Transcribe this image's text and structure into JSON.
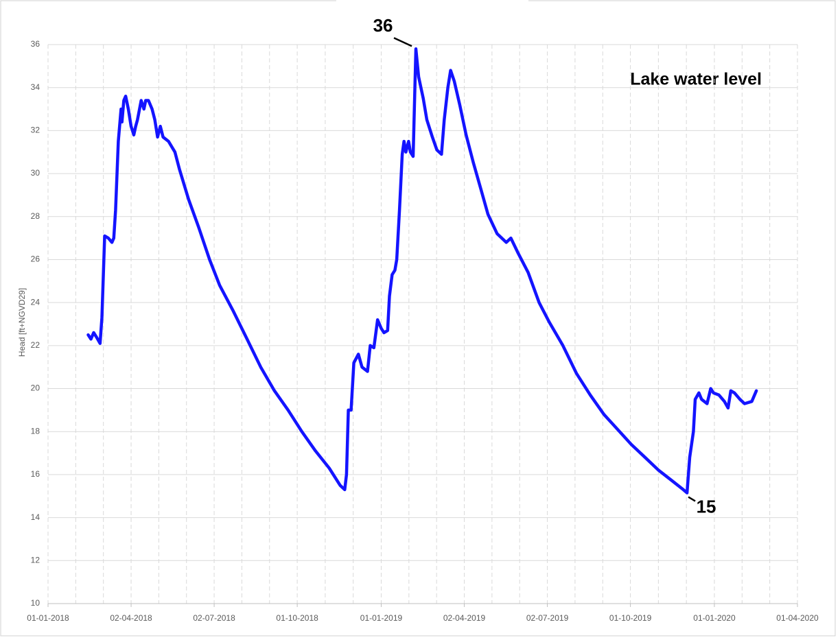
{
  "chart_data": {
    "type": "line",
    "title": "Lake water level",
    "y_label": "Head [ft+NGVD29]",
    "color": "#1414ff",
    "grid": true,
    "xlim": [
      "2018-01-01",
      "2020-04-01"
    ],
    "xticks": [
      {
        "value": "2018-01-01",
        "label": "01-01-2018"
      },
      {
        "value": "2018-04-02",
        "label": "02-04-2018"
      },
      {
        "value": "2018-07-02",
        "label": "02-07-2018"
      },
      {
        "value": "2018-10-01",
        "label": "01-10-2018"
      },
      {
        "value": "2019-01-01",
        "label": "01-01-2019"
      },
      {
        "value": "2019-04-02",
        "label": "02-04-2019"
      },
      {
        "value": "2019-07-02",
        "label": "02-07-2019"
      },
      {
        "value": "2019-10-01",
        "label": "01-10-2019"
      },
      {
        "value": "2020-01-01",
        "label": "01-01-2020"
      },
      {
        "value": "2020-04-01",
        "label": "01-04-2020"
      }
    ],
    "ylim": [
      10,
      36
    ],
    "yticks": [
      10,
      12,
      14,
      16,
      18,
      20,
      22,
      24,
      26,
      28,
      30,
      32,
      34,
      36
    ],
    "x": [
      "2018-02-14",
      "2018-02-17",
      "2018-02-20",
      "2018-02-23",
      "2018-02-27",
      "2018-03-01",
      "2018-03-04",
      "2018-03-08",
      "2018-03-12",
      "2018-03-14",
      "2018-03-16",
      "2018-03-19",
      "2018-03-22",
      "2018-03-23",
      "2018-03-25",
      "2018-03-27",
      "2018-03-30",
      "2018-04-02",
      "2018-04-05",
      "2018-04-07",
      "2018-04-09",
      "2018-04-13",
      "2018-04-16",
      "2018-04-18",
      "2018-04-21",
      "2018-04-25",
      "2018-04-28",
      "2018-05-01",
      "2018-05-04",
      "2018-05-07",
      "2018-05-13",
      "2018-05-20",
      "2018-05-25",
      "2018-06-04",
      "2018-06-15",
      "2018-06-27",
      "2018-07-08",
      "2018-07-23",
      "2018-08-07",
      "2018-08-22",
      "2018-09-06",
      "2018-09-21",
      "2018-10-06",
      "2018-10-21",
      "2018-11-05",
      "2018-11-17",
      "2018-11-22",
      "2018-11-24",
      "2018-11-26",
      "2018-11-29",
      "2018-12-02",
      "2018-12-07",
      "2018-12-11",
      "2018-12-17",
      "2018-12-20",
      "2018-12-24",
      "2018-12-28",
      "2019-01-01",
      "2019-01-04",
      "2019-01-08",
      "2019-01-10",
      "2019-01-13",
      "2019-01-16",
      "2019-01-18",
      "2019-01-21",
      "2019-01-24",
      "2019-01-26",
      "2019-01-28",
      "2019-01-31",
      "2019-02-02",
      "2019-02-05",
      "2019-02-08",
      "2019-02-11",
      "2019-02-16",
      "2019-02-20",
      "2019-02-26",
      "2019-03-03",
      "2019-03-08",
      "2019-03-11",
      "2019-03-15",
      "2019-03-18",
      "2019-03-22",
      "2019-03-28",
      "2019-04-04",
      "2019-04-12",
      "2019-04-20",
      "2019-04-28",
      "2019-05-08",
      "2019-05-18",
      "2019-05-23",
      "2019-05-31",
      "2019-06-11",
      "2019-06-23",
      "2019-07-04",
      "2019-07-19",
      "2019-08-03",
      "2019-08-18",
      "2019-09-02",
      "2019-09-17",
      "2019-10-02",
      "2019-10-17",
      "2019-11-01",
      "2019-11-16",
      "2019-11-28",
      "2019-12-02",
      "2019-12-05",
      "2019-12-09",
      "2019-12-11",
      "2019-12-15",
      "2019-12-18",
      "2019-12-24",
      "2019-12-28",
      "2019-12-31",
      "2020-01-06",
      "2020-01-12",
      "2020-01-16",
      "2020-01-19",
      "2020-01-23",
      "2020-01-29",
      "2020-02-03",
      "2020-02-11",
      "2020-02-16"
    ],
    "values": [
      22.5,
      22.3,
      22.6,
      22.4,
      22.1,
      23.3,
      27.1,
      27.0,
      26.8,
      27.0,
      28.3,
      31.5,
      33.0,
      32.4,
      33.4,
      33.6,
      33.0,
      32.2,
      31.8,
      32.2,
      32.5,
      33.4,
      33.0,
      33.4,
      33.4,
      33.0,
      32.5,
      31.7,
      32.2,
      31.7,
      31.5,
      31.0,
      30.2,
      28.8,
      27.5,
      26.0,
      24.8,
      23.6,
      22.3,
      21.0,
      19.9,
      19.0,
      18.0,
      17.1,
      16.3,
      15.5,
      15.3,
      16.0,
      19.0,
      19.0,
      21.2,
      21.6,
      21.0,
      20.8,
      22.0,
      21.9,
      23.2,
      22.8,
      22.6,
      22.7,
      24.3,
      25.3,
      25.5,
      26.0,
      28.3,
      30.9,
      31.5,
      31.0,
      31.5,
      31.0,
      30.8,
      35.8,
      34.5,
      33.5,
      32.5,
      31.7,
      31.1,
      30.9,
      32.5,
      34.0,
      34.8,
      34.3,
      33.2,
      31.8,
      30.5,
      29.3,
      28.1,
      27.2,
      26.8,
      27.0,
      26.3,
      25.4,
      24.0,
      23.1,
      22.0,
      20.7,
      19.7,
      18.8,
      18.1,
      17.4,
      16.8,
      16.2,
      15.7,
      15.3,
      15.15,
      16.8,
      18.0,
      19.5,
      19.8,
      19.5,
      19.3,
      20.0,
      19.8,
      19.7,
      19.4,
      19.1,
      19.9,
      19.8,
      19.5,
      19.3,
      19.4,
      19.9
    ],
    "annotations": [
      {
        "text": "36",
        "x": "2019-02-08",
        "y": 35.8
      },
      {
        "text": "15",
        "x": "2019-12-02",
        "y": 15.15
      }
    ]
  }
}
